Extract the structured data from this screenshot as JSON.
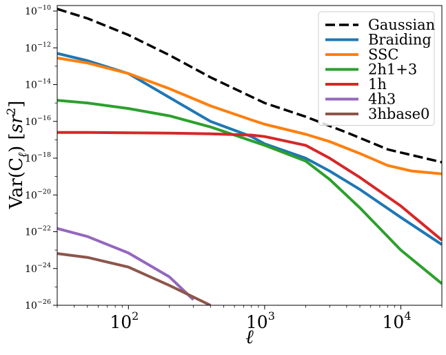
{
  "chart_data": {
    "type": "line",
    "xlabel": "ℓ",
    "ylabel_main": "Var(C",
    "ylabel_sub": "ℓ",
    "ylabel_unit_open": ") [",
    "ylabel_unit": "sr",
    "ylabel_unit_exp": "2",
    "ylabel_close": "]",
    "xscale": "log",
    "yscale": "log",
    "xlim": [
      30,
      20000
    ],
    "ylim": [
      1e-26,
      2e-10
    ],
    "grid": false,
    "legend_position": "top-right",
    "x_ticks": [
      {
        "value": 100,
        "base": "10",
        "exp": "2"
      },
      {
        "value": 1000,
        "base": "10",
        "exp": "3"
      },
      {
        "value": 10000,
        "base": "10",
        "exp": "4"
      }
    ],
    "y_ticks": [
      {
        "value": 1e-10,
        "base": "10",
        "exp": "−10"
      },
      {
        "value": 1e-12,
        "base": "10",
        "exp": "−12"
      },
      {
        "value": 1e-14,
        "base": "10",
        "exp": "−14"
      },
      {
        "value": 1e-16,
        "base": "10",
        "exp": "−16"
      },
      {
        "value": 1e-18,
        "base": "10",
        "exp": "−18"
      },
      {
        "value": 1e-20,
        "base": "10",
        "exp": "−20"
      },
      {
        "value": 1e-22,
        "base": "10",
        "exp": "−22"
      },
      {
        "value": 1e-24,
        "base": "10",
        "exp": "−24"
      },
      {
        "value": 1e-26,
        "base": "10",
        "exp": "−26"
      }
    ],
    "series": [
      {
        "name": "Gaussian",
        "color": "#000000",
        "dashed": true,
        "x": [
          30,
          50,
          100,
          200,
          400,
          1000,
          2000,
          4000,
          8000,
          20000
        ],
        "y": [
          1.3e-10,
          4e-11,
          5e-12,
          4e-13,
          2.5e-14,
          1e-15,
          1.8e-16,
          2.5e-17,
          3e-18,
          6e-19
        ]
      },
      {
        "name": "Braiding",
        "color": "#1f77b4",
        "dashed": false,
        "x": [
          30,
          50,
          100,
          200,
          400,
          800,
          1000,
          2000,
          3000,
          5000,
          10000,
          20000
        ],
        "y": [
          5e-13,
          2e-13,
          4e-14,
          2e-15,
          1e-16,
          1.5e-17,
          6e-18,
          1e-18,
          2e-19,
          2e-20,
          6e-22,
          2e-23
        ]
      },
      {
        "name": "SSC",
        "color": "#ff7f0e",
        "dashed": false,
        "x": [
          30,
          50,
          100,
          200,
          400,
          800,
          1000,
          2000,
          3000,
          5000,
          8000,
          12000,
          20000
        ],
        "y": [
          2.8e-13,
          1.5e-13,
          4e-14,
          6e-15,
          7e-16,
          1.2e-16,
          7e-17,
          2e-17,
          8e-18,
          1.8e-18,
          4e-19,
          2e-19,
          1.4e-19
        ]
      },
      {
        "name": "2h1+3",
        "color": "#2ca02c",
        "dashed": false,
        "x": [
          30,
          50,
          100,
          200,
          400,
          1000,
          2000,
          3000,
          5000,
          10000,
          20000
        ],
        "y": [
          1.4e-15,
          1e-15,
          5e-16,
          2e-16,
          5e-17,
          5e-18,
          7e-19,
          7e-20,
          2e-21,
          1e-23,
          1.5e-25
        ]
      },
      {
        "name": "1h",
        "color": "#d62728",
        "dashed": false,
        "x": [
          30,
          50,
          100,
          200,
          400,
          800,
          1000,
          2000,
          3000,
          5000,
          10000,
          20000
        ],
        "y": [
          2.5e-17,
          2.5e-17,
          2.4e-17,
          2.3e-17,
          2.1e-17,
          1.8e-17,
          1.5e-17,
          5e-18,
          1e-18,
          9e-20,
          2.5e-21,
          3.5e-23
        ]
      },
      {
        "name": "4h3",
        "color": "#9467bd",
        "dashed": false,
        "x": [
          30,
          50,
          100,
          200,
          300
        ],
        "y": [
          1.5e-22,
          5.5e-23,
          7e-24,
          3.5e-25,
          2e-26
        ]
      },
      {
        "name": "3hbase0",
        "color": "#8c564b",
        "dashed": false,
        "x": [
          30,
          50,
          100,
          200,
          400
        ],
        "y": [
          6.5e-24,
          4e-24,
          1.2e-24,
          1.2e-25,
          1e-26
        ]
      }
    ]
  }
}
